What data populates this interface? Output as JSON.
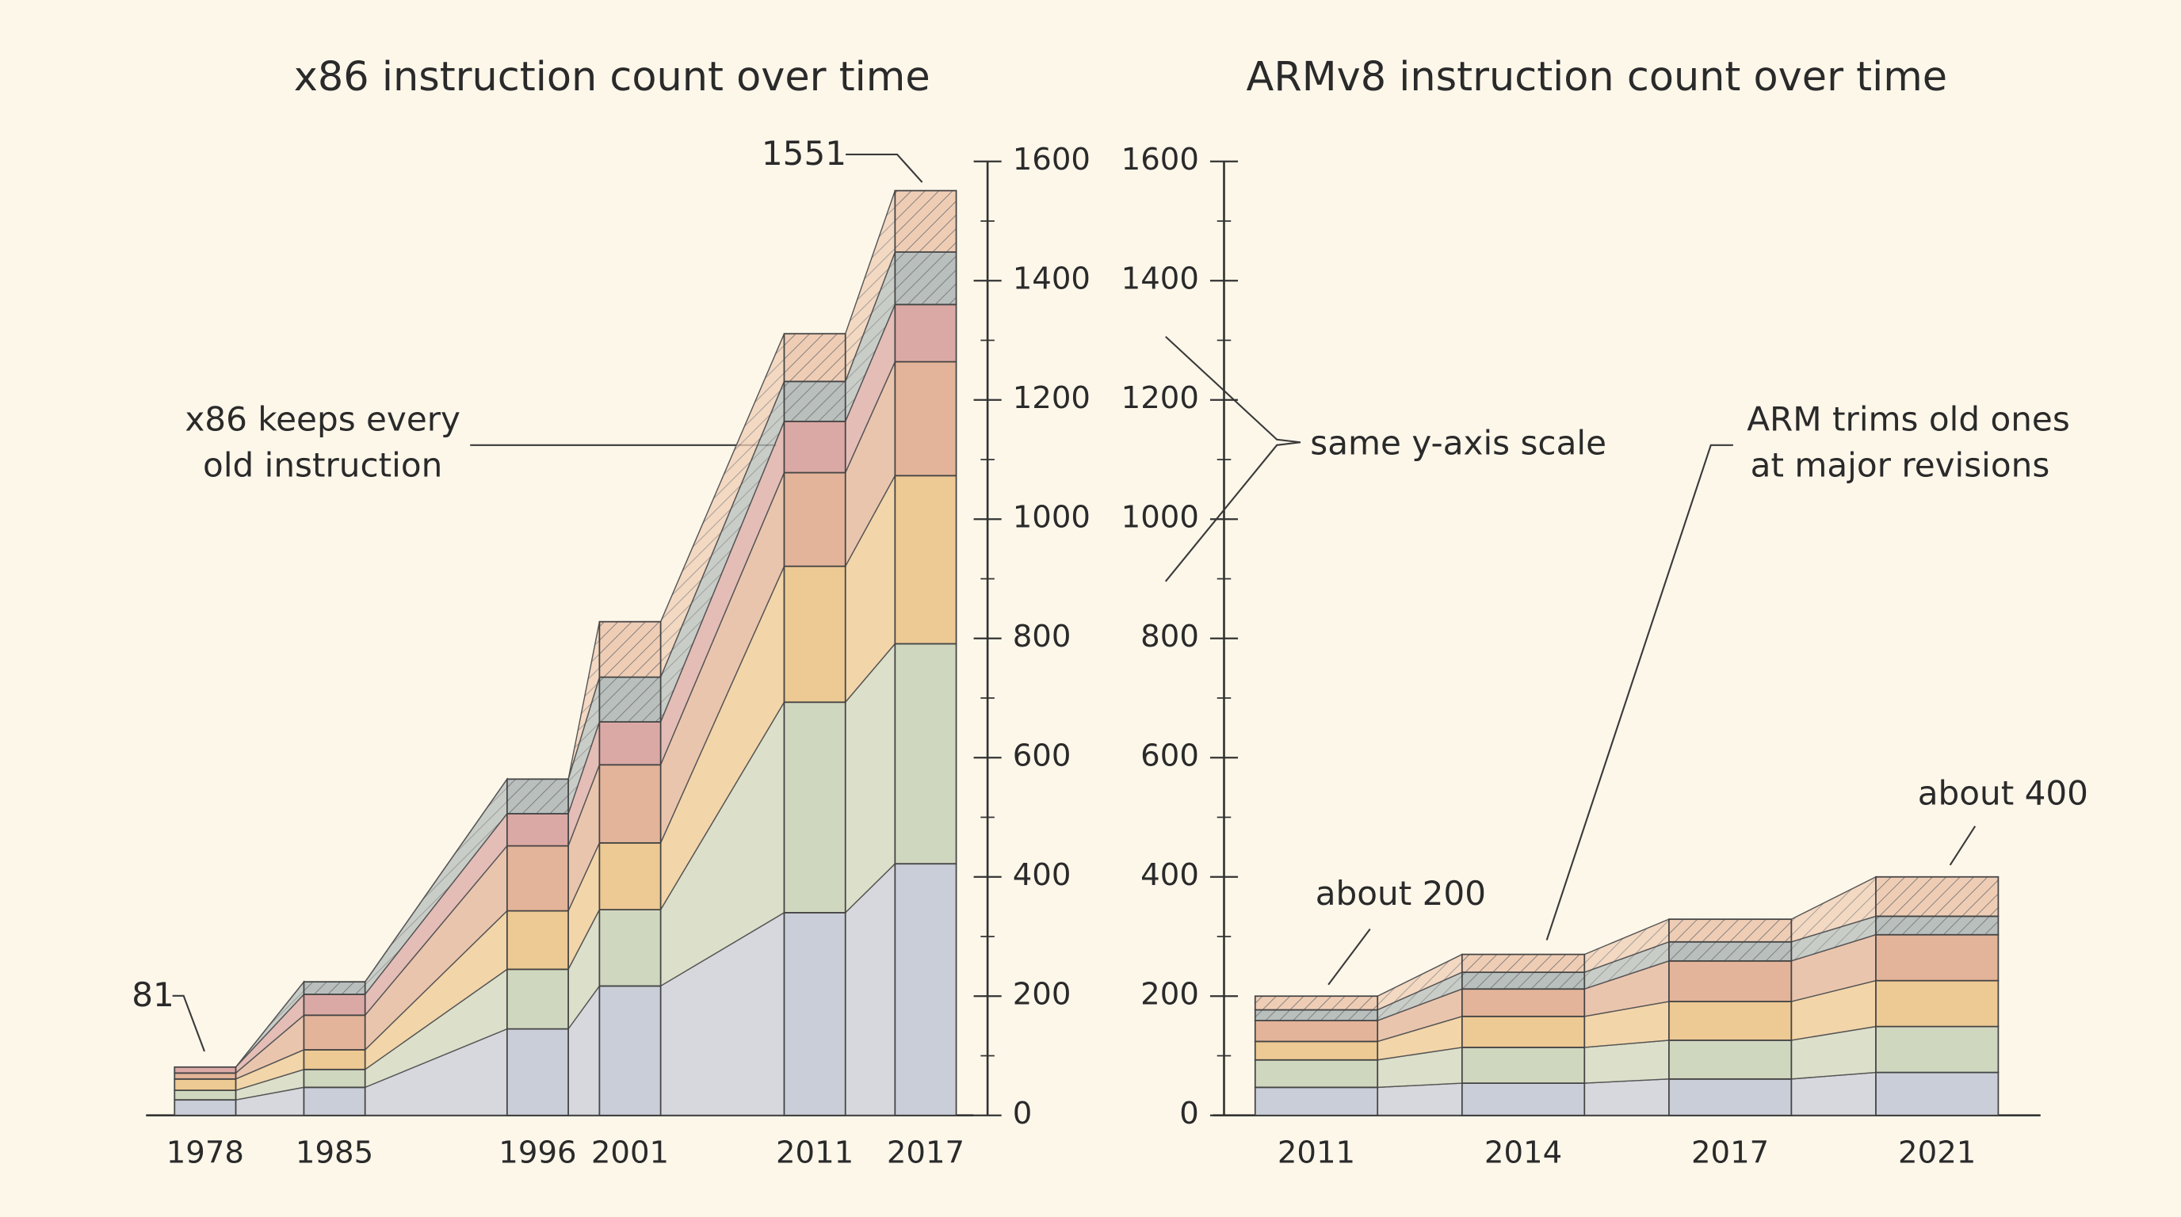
{
  "chart_data": [
    {
      "type": "stacked_bar",
      "title": "x86 instruction count over time",
      "x": [
        1978,
        1985,
        1996,
        2001,
        2011,
        2017
      ],
      "xlim": [
        1974.8,
        2019.6
      ],
      "ylim": [
        0,
        1600
      ],
      "yticks": [
        0,
        200,
        400,
        600,
        800,
        1000,
        1200,
        1400,
        1600
      ],
      "minor_yticks": [
        100,
        300,
        500,
        700,
        900,
        1100,
        1300,
        1500
      ],
      "y_axis_side": "right",
      "series": [
        {
          "color": "#c9ced8",
          "hatch": false,
          "values": [
            26,
            47,
            145,
            217,
            340,
            422
          ]
        },
        {
          "color": "#d0d7bf",
          "hatch": false,
          "values": [
            16,
            30,
            100,
            128,
            353,
            369
          ]
        },
        {
          "color": "#edc993",
          "hatch": false,
          "values": [
            19,
            33,
            98,
            112,
            228,
            282
          ]
        },
        {
          "color": "#e3b499",
          "hatch": false,
          "values": [
            10,
            58,
            109,
            131,
            157,
            191
          ]
        },
        {
          "color": "#dba9a5",
          "hatch": false,
          "values": [
            10,
            35,
            54,
            72,
            86,
            96
          ]
        },
        {
          "color": "#b8bfbd",
          "hatch": true,
          "values": [
            0,
            21,
            58,
            75,
            67,
            88
          ]
        },
        {
          "color": "#efcdb5",
          "hatch": true,
          "values": [
            0,
            0,
            0,
            93,
            80,
            103
          ]
        }
      ],
      "annotations": [
        {
          "text": "1551"
        },
        {
          "text": "81"
        },
        {
          "lines": [
            "x86 keeps every",
            "old instruction"
          ]
        }
      ]
    },
    {
      "type": "stacked_bar",
      "title": "ARMv8 instruction count over time",
      "categories": [
        "2011",
        "2014",
        "2017",
        "2021"
      ],
      "ylim": [
        0,
        1600
      ],
      "yticks": [
        0,
        200,
        400,
        600,
        800,
        1000,
        1200,
        1400,
        1600
      ],
      "minor_yticks": [
        100,
        300,
        500,
        700,
        900,
        1100,
        1300,
        1500
      ],
      "y_axis_side": "left",
      "series": [
        {
          "color": "#c9ced8",
          "hatch": false,
          "values": [
            47,
            54,
            61,
            72
          ]
        },
        {
          "color": "#d0d7bf",
          "hatch": false,
          "values": [
            46,
            60,
            65,
            77
          ]
        },
        {
          "color": "#edc993",
          "hatch": false,
          "values": [
            31,
            52,
            65,
            77
          ]
        },
        {
          "color": "#e3b499",
          "hatch": false,
          "values": [
            35,
            46,
            68,
            77
          ]
        },
        {
          "color": "#b8bfbd",
          "hatch": true,
          "values": [
            18,
            28,
            32,
            31
          ]
        },
        {
          "color": "#efcdb5",
          "hatch": true,
          "values": [
            23,
            30,
            38,
            66
          ]
        }
      ],
      "annotations": [
        {
          "text": "same y-axis scale"
        },
        {
          "lines": [
            "ARM trims old ones",
            "at major revisions"
          ]
        },
        {
          "text": "about 200"
        },
        {
          "text": "about 400"
        }
      ]
    }
  ]
}
